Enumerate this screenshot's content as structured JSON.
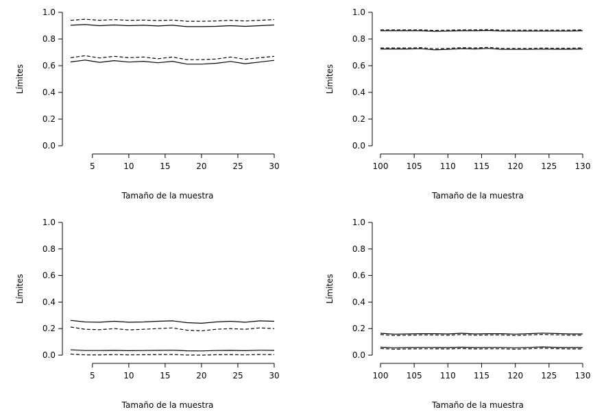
{
  "chart_data": [
    {
      "type": "line",
      "xlabel": "Tamaño de la muestra",
      "ylabel": "Límites",
      "xlim": [
        2,
        30
      ],
      "ylim": [
        0,
        1
      ],
      "xticks": [
        5,
        10,
        15,
        20,
        25,
        30
      ],
      "yticks": [
        0.0,
        0.2,
        0.4,
        0.6,
        0.8,
        1.0
      ],
      "ytick_labels": [
        "0.0",
        "0.2",
        "0.4",
        "0.6",
        "0.8",
        "1.0"
      ],
      "x": [
        2,
        4,
        6,
        8,
        10,
        12,
        14,
        16,
        18,
        20,
        22,
        24,
        26,
        28,
        30
      ],
      "series": [
        {
          "style": "dashed",
          "values": [
            0.94,
            0.948,
            0.94,
            0.945,
            0.94,
            0.942,
            0.938,
            0.942,
            0.933,
            0.933,
            0.935,
            0.94,
            0.935,
            0.94,
            0.945
          ]
        },
        {
          "style": "solid",
          "values": [
            0.903,
            0.908,
            0.9,
            0.905,
            0.9,
            0.903,
            0.898,
            0.903,
            0.893,
            0.893,
            0.895,
            0.9,
            0.895,
            0.9,
            0.905
          ]
        },
        {
          "style": "dashed",
          "values": [
            0.66,
            0.675,
            0.658,
            0.67,
            0.66,
            0.665,
            0.652,
            0.665,
            0.645,
            0.645,
            0.65,
            0.665,
            0.648,
            0.66,
            0.67
          ]
        },
        {
          "style": "solid",
          "values": [
            0.628,
            0.642,
            0.625,
            0.638,
            0.627,
            0.633,
            0.622,
            0.633,
            0.612,
            0.612,
            0.618,
            0.632,
            0.615,
            0.627,
            0.64
          ]
        }
      ]
    },
    {
      "type": "line",
      "xlabel": "Tamaño de la muestra",
      "ylabel": "Límites",
      "xlim": [
        100,
        130
      ],
      "ylim": [
        0,
        1
      ],
      "xticks": [
        100,
        105,
        110,
        115,
        120,
        125,
        130
      ],
      "yticks": [
        0.0,
        0.2,
        0.4,
        0.6,
        0.8,
        1.0
      ],
      "ytick_labels": [
        "0.0",
        "0.2",
        "0.4",
        "0.6",
        "0.8",
        "1.0"
      ],
      "x": [
        100,
        102,
        104,
        106,
        108,
        110,
        112,
        114,
        116,
        118,
        120,
        122,
        124,
        126,
        128,
        130
      ],
      "series": [
        {
          "style": "dashed",
          "values": [
            0.868,
            0.868,
            0.868,
            0.868,
            0.864,
            0.866,
            0.868,
            0.868,
            0.87,
            0.866,
            0.866,
            0.866,
            0.866,
            0.866,
            0.866,
            0.868
          ]
        },
        {
          "style": "solid",
          "values": [
            0.862,
            0.862,
            0.862,
            0.862,
            0.858,
            0.86,
            0.862,
            0.862,
            0.864,
            0.86,
            0.86,
            0.86,
            0.86,
            0.86,
            0.86,
            0.862
          ]
        },
        {
          "style": "dashed",
          "values": [
            0.733,
            0.733,
            0.733,
            0.735,
            0.727,
            0.73,
            0.735,
            0.733,
            0.737,
            0.73,
            0.73,
            0.73,
            0.732,
            0.731,
            0.731,
            0.733
          ]
        },
        {
          "style": "solid",
          "values": [
            0.725,
            0.725,
            0.725,
            0.727,
            0.719,
            0.722,
            0.727,
            0.725,
            0.729,
            0.722,
            0.722,
            0.722,
            0.724,
            0.723,
            0.723,
            0.725
          ]
        }
      ]
    },
    {
      "type": "line",
      "xlabel": "Tamaño de la muestra",
      "ylabel": "Límites",
      "xlim": [
        2,
        30
      ],
      "ylim": [
        0,
        1
      ],
      "xticks": [
        5,
        10,
        15,
        20,
        25,
        30
      ],
      "yticks": [
        0.0,
        0.2,
        0.4,
        0.6,
        0.8,
        1.0
      ],
      "ytick_labels": [
        "0.0",
        "0.2",
        "0.4",
        "0.6",
        "0.8",
        "1.0"
      ],
      "x": [
        2,
        4,
        6,
        8,
        10,
        12,
        14,
        16,
        18,
        20,
        22,
        24,
        26,
        28,
        30
      ],
      "series": [
        {
          "style": "solid",
          "values": [
            0.262,
            0.25,
            0.248,
            0.255,
            0.248,
            0.25,
            0.255,
            0.258,
            0.245,
            0.24,
            0.25,
            0.255,
            0.248,
            0.258,
            0.255
          ]
        },
        {
          "style": "dashed",
          "values": [
            0.212,
            0.195,
            0.192,
            0.2,
            0.19,
            0.195,
            0.2,
            0.205,
            0.188,
            0.183,
            0.195,
            0.2,
            0.195,
            0.205,
            0.2
          ]
        },
        {
          "style": "solid",
          "values": [
            0.04,
            0.035,
            0.035,
            0.036,
            0.034,
            0.035,
            0.036,
            0.037,
            0.033,
            0.032,
            0.035,
            0.036,
            0.034,
            0.037,
            0.036
          ]
        },
        {
          "style": "dashed",
          "values": [
            0.008,
            0.002,
            0.002,
            0.004,
            0.002,
            0.003,
            0.004,
            0.005,
            0.001,
            0.0,
            0.003,
            0.004,
            0.002,
            0.005,
            0.004
          ]
        }
      ]
    },
    {
      "type": "line",
      "xlabel": "Tamaño de la muestra",
      "ylabel": "Límites",
      "xlim": [
        100,
        130
      ],
      "ylim": [
        0,
        1
      ],
      "xticks": [
        100,
        105,
        110,
        115,
        120,
        125,
        130
      ],
      "yticks": [
        0.0,
        0.2,
        0.4,
        0.6,
        0.8,
        1.0
      ],
      "ytick_labels": [
        "0.0",
        "0.2",
        "0.4",
        "0.6",
        "0.8",
        "1.0"
      ],
      "x": [
        100,
        102,
        104,
        106,
        108,
        110,
        112,
        114,
        116,
        118,
        120,
        122,
        124,
        126,
        128,
        130
      ],
      "series": [
        {
          "style": "solid",
          "values": [
            0.165,
            0.158,
            0.16,
            0.162,
            0.162,
            0.16,
            0.165,
            0.16,
            0.162,
            0.162,
            0.158,
            0.162,
            0.166,
            0.163,
            0.16,
            0.16
          ]
        },
        {
          "style": "dashed",
          "values": [
            0.155,
            0.148,
            0.15,
            0.152,
            0.152,
            0.15,
            0.155,
            0.15,
            0.152,
            0.152,
            0.148,
            0.152,
            0.156,
            0.153,
            0.15,
            0.15
          ]
        },
        {
          "style": "solid",
          "values": [
            0.06,
            0.055,
            0.057,
            0.058,
            0.058,
            0.057,
            0.06,
            0.057,
            0.058,
            0.058,
            0.055,
            0.058,
            0.062,
            0.059,
            0.057,
            0.057
          ]
        },
        {
          "style": "dashed",
          "values": [
            0.05,
            0.045,
            0.047,
            0.048,
            0.048,
            0.047,
            0.05,
            0.047,
            0.048,
            0.048,
            0.045,
            0.048,
            0.052,
            0.049,
            0.047,
            0.047
          ]
        }
      ]
    }
  ]
}
